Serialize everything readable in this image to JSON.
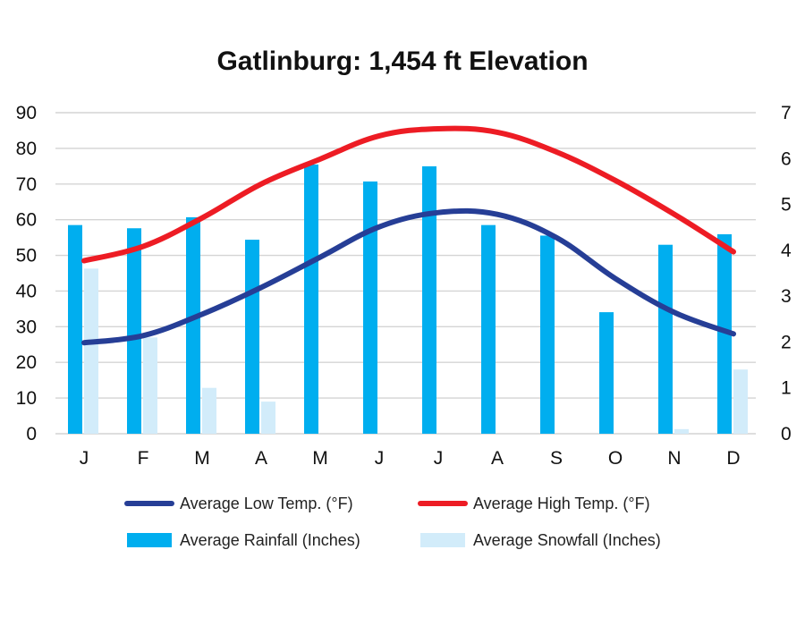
{
  "chart_data": {
    "type": "bar",
    "title": "Gatlinburg: 1,454 ft Elevation",
    "categories": [
      "J",
      "F",
      "M",
      "A",
      "M",
      "J",
      "J",
      "A",
      "S",
      "O",
      "N",
      "D"
    ],
    "y_left": {
      "ylim": [
        0,
        90
      ],
      "ticks": [
        "0",
        "10",
        "20",
        "30",
        "40",
        "50",
        "60",
        "70",
        "80",
        "90"
      ]
    },
    "y_right": {
      "ylim": [
        0,
        7
      ],
      "ticks": [
        "0",
        "1",
        "2",
        "3",
        "4",
        "5",
        "6",
        "7"
      ]
    },
    "grid": true,
    "legend_position": "bottom",
    "series": [
      {
        "name": "Average Rainfall (Inches)",
        "type": "bar",
        "axis": "right",
        "color": "#00AEEF",
        "values": [
          4.55,
          4.48,
          4.72,
          4.23,
          5.87,
          5.5,
          5.83,
          4.55,
          4.32,
          2.65,
          4.12,
          4.35
        ]
      },
      {
        "name": "Average Snowfall (Inches)",
        "type": "bar",
        "axis": "right",
        "color": "#D2ECFA",
        "values": [
          3.6,
          2.1,
          1.0,
          0.7,
          0,
          0,
          0,
          0,
          0,
          0,
          0.1,
          1.4
        ]
      },
      {
        "name": "Average Low Temp. (°F)",
        "type": "line",
        "axis": "left",
        "color": "#263E96",
        "values": [
          25.5,
          27.5,
          33.5,
          41,
          49.5,
          58,
          62,
          61.5,
          55,
          43.5,
          34,
          28
        ]
      },
      {
        "name": "Average High Temp. (°F)",
        "type": "line",
        "axis": "left",
        "color": "#ED1C24",
        "values": [
          48.5,
          52.5,
          60.5,
          70,
          77,
          83.5,
          85.5,
          84.5,
          79,
          71,
          61.5,
          51
        ]
      }
    ]
  }
}
